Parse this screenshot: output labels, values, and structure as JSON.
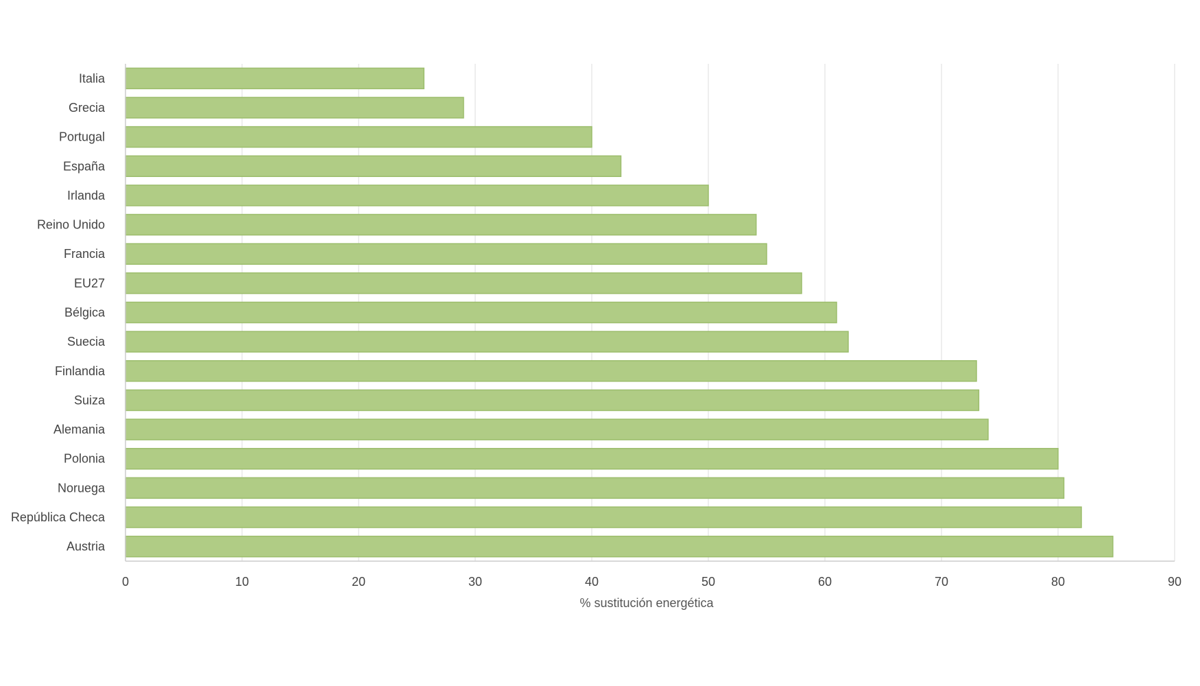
{
  "chart_data": {
    "type": "bar",
    "orientation": "horizontal",
    "title": "",
    "xlabel": "% sustitución energética",
    "ylabel": "",
    "categories": [
      "Italia",
      "Grecia",
      "Portugal",
      "España",
      "Irlanda",
      "Reino Unido",
      "Francia",
      "EU27",
      "Bélgica",
      "Suecia",
      "Finlandia",
      "Suiza",
      "Alemania",
      "Polonia",
      "Noruega",
      "República Checa",
      "Austria"
    ],
    "values": [
      25.6,
      29,
      40,
      42.5,
      50,
      54.1,
      55,
      58,
      61,
      62,
      73,
      73.2,
      74,
      80,
      80.5,
      82,
      84.7
    ],
    "xlim": [
      0,
      90
    ],
    "xticks": [
      "0",
      "10",
      "20",
      "30",
      "40",
      "50",
      "60",
      "70",
      "80",
      "90"
    ],
    "grid": "vertical",
    "legend": "none",
    "bar_color": "#b0cc85",
    "bar_edge_color": "#9cbd6c"
  }
}
